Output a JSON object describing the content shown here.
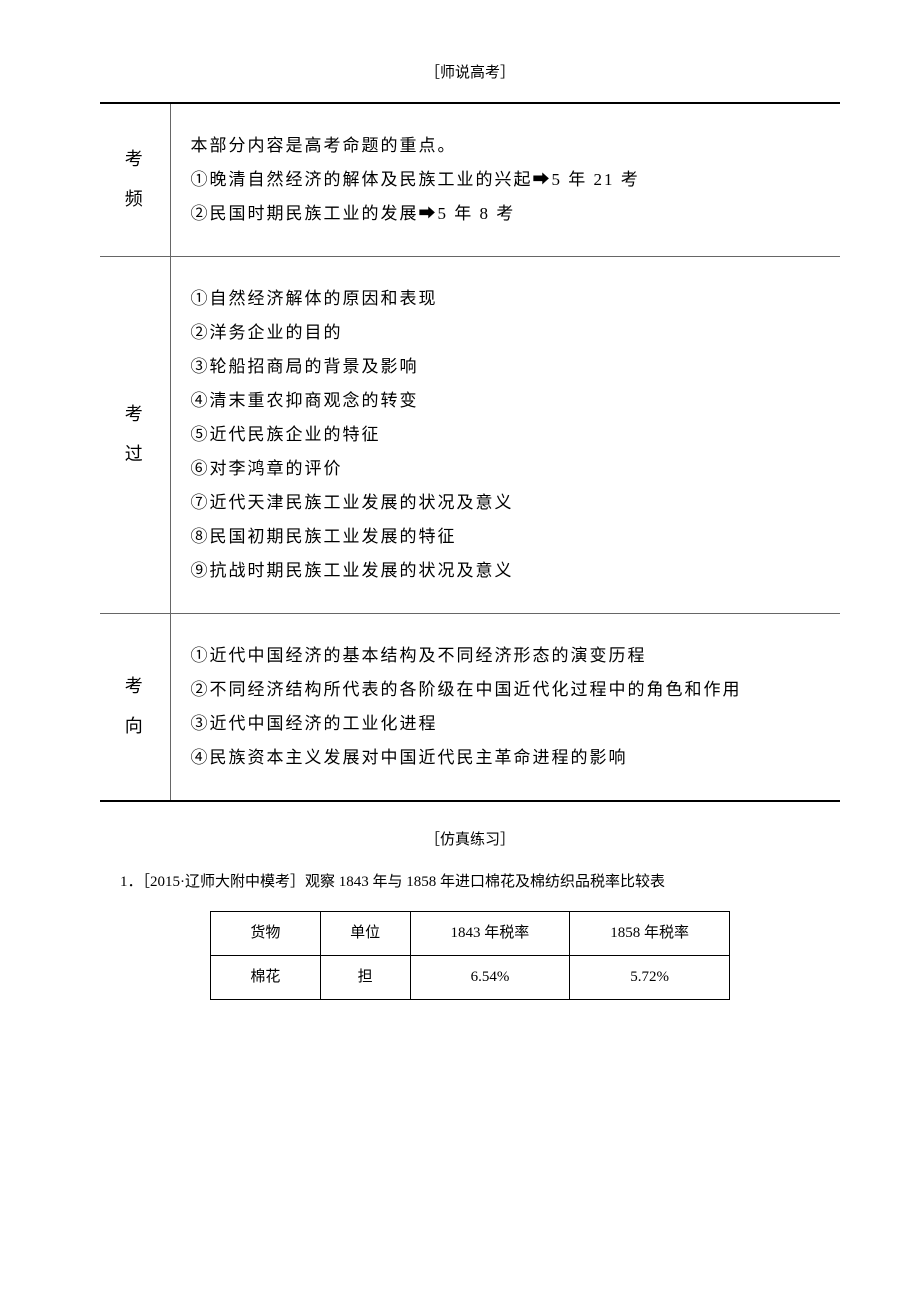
{
  "section_title_1": "［师说高考］",
  "main_table": {
    "rows": [
      {
        "label": "考频",
        "content": "本部分内容是高考命题的重点。\n①晚清自然经济的解体及民族工业的兴起➡5 年 21 考\n②民国时期民族工业的发展➡5 年 8 考"
      },
      {
        "label": "考过",
        "content": "①自然经济解体的原因和表现\n②洋务企业的目的\n③轮船招商局的背景及影响\n④清末重农抑商观念的转变\n⑤近代民族企业的特征\n⑥对李鸿章的评价\n⑦近代天津民族工业发展的状况及意义\n⑧民国初期民族工业发展的特征\n⑨抗战时期民族工业发展的状况及意义"
      },
      {
        "label": "考向",
        "content": "①近代中国经济的基本结构及不同经济形态的演变历程\n②不同经济结构所代表的各阶级在中国近代化过程中的角色和作用\n③近代中国经济的工业化进程\n④民族资本主义发展对中国近代民主革命进程的影响"
      }
    ]
  },
  "section_title_2": "［仿真练习］",
  "question_text": "1．［2015·辽师大附中模考］观察 1843 年与 1858 年进口棉花及棉纺织品税率比较表",
  "data_table": {
    "headers": [
      "货物",
      "单位",
      "1843 年税率",
      "1858 年税率"
    ],
    "rows": [
      [
        "棉花",
        "担",
        "6.54%",
        "5.72%"
      ]
    ],
    "col_widths": [
      "110px",
      "90px",
      "160px",
      "160px"
    ]
  },
  "colors": {
    "text": "#000000",
    "border_dark": "#000000",
    "border_light": "#666666",
    "background": "#ffffff"
  }
}
